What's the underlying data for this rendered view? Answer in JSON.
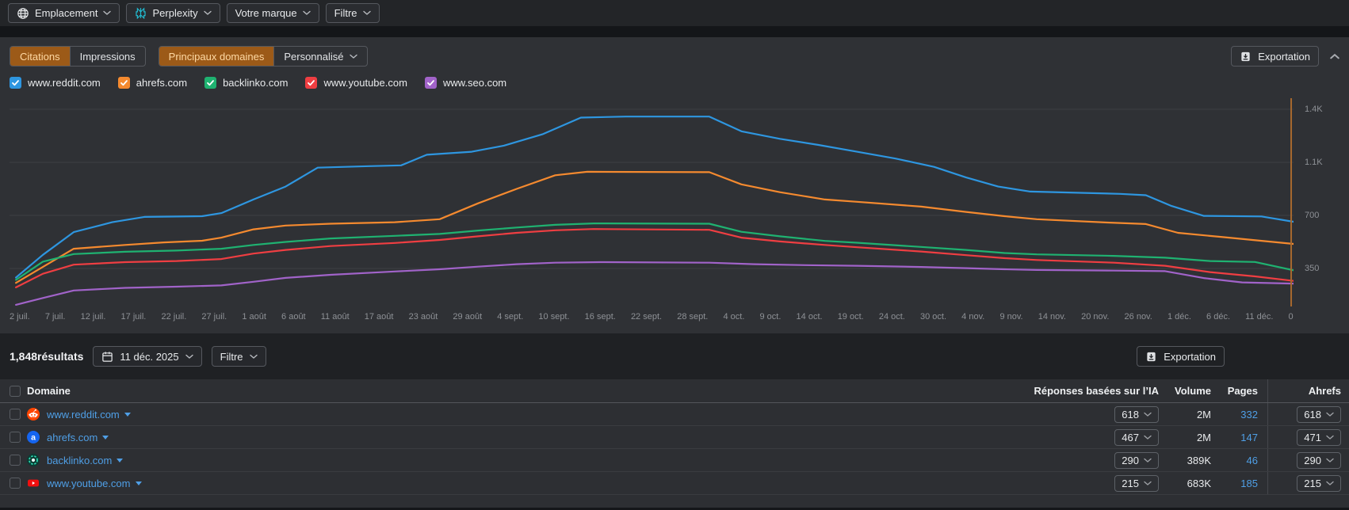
{
  "colors": {
    "panel_bg": "#2f3135",
    "accent_active_bg": "#9c5a18",
    "accent_active_text": "#ffd9a3",
    "link": "#4f9fe6",
    "grid": "#3c3e42",
    "marker_line": "#a8692e"
  },
  "toolbar": {
    "buttons": [
      {
        "label": "Emplacement",
        "icon": "globe-icon"
      },
      {
        "label": "Perplexity",
        "icon": "perplexity-icon"
      },
      {
        "label": "Votre marque",
        "icon": null
      },
      {
        "label": "Filtre",
        "icon": null
      }
    ]
  },
  "chart_section": {
    "metric_tabs": [
      {
        "label": "Citations",
        "active": true,
        "dropdown": false
      },
      {
        "label": "Impressions",
        "active": false,
        "dropdown": false
      }
    ],
    "scope_tabs": [
      {
        "label": "Principaux domaines",
        "active": true,
        "dropdown": false
      },
      {
        "label": "Personnalisé",
        "active": false,
        "dropdown": true
      }
    ],
    "export_label": "Exportation",
    "legend": [
      {
        "label": "www.reddit.com",
        "color": "#2e96e0"
      },
      {
        "label": "ahrefs.com",
        "color": "#f58a2f"
      },
      {
        "label": "backlinko.com",
        "color": "#1fb271"
      },
      {
        "label": "www.youtube.com",
        "color": "#ef3e42"
      },
      {
        "label": "www.seo.com",
        "color": "#a163c9"
      }
    ]
  },
  "chart_data": {
    "type": "line",
    "title": "",
    "xlabel": "",
    "ylabel": "",
    "grid": true,
    "legend_position": "top",
    "ylim": [
      0,
      1450
    ],
    "x_ticks": [
      "2 juil.",
      "7 juil.",
      "12 juil.",
      "17 juil.",
      "22 juil.",
      "27 juil.",
      "1 août",
      "6 août",
      "11 août",
      "17 août",
      "23 août",
      "29 août",
      "4 sept.",
      "10 sept.",
      "16 sept.",
      "22 sept.",
      "28 sept.",
      "4 oct.",
      "9 oct.",
      "14 oct.",
      "19 oct.",
      "24 oct.",
      "30 oct.",
      "4 nov.",
      "9 nov.",
      "14 nov.",
      "20 nov.",
      "26 nov.",
      "1 déc.",
      "6 déc.",
      "11 déc."
    ],
    "x_axis_end_label": "0",
    "y_ticks": [
      {
        "label": "1.4K",
        "value": 1400
      },
      {
        "label": "1.1K",
        "value": 1050
      },
      {
        "label": "700",
        "value": 700
      },
      {
        "label": "350",
        "value": 350
      }
    ],
    "series": [
      {
        "name": "www.reddit.com",
        "color": "#2e96e0",
        "points": [
          [
            0.005,
            290
          ],
          [
            0.026,
            440
          ],
          [
            0.05,
            590
          ],
          [
            0.08,
            655
          ],
          [
            0.105,
            690
          ],
          [
            0.15,
            695
          ],
          [
            0.165,
            715
          ],
          [
            0.19,
            805
          ],
          [
            0.215,
            890
          ],
          [
            0.24,
            1015
          ],
          [
            0.28,
            1025
          ],
          [
            0.305,
            1030
          ],
          [
            0.325,
            1100
          ],
          [
            0.36,
            1120
          ],
          [
            0.385,
            1160
          ],
          [
            0.415,
            1235
          ],
          [
            0.445,
            1345
          ],
          [
            0.48,
            1352
          ],
          [
            0.545,
            1352
          ],
          [
            0.57,
            1255
          ],
          [
            0.6,
            1205
          ],
          [
            0.63,
            1165
          ],
          [
            0.66,
            1120
          ],
          [
            0.69,
            1075
          ],
          [
            0.72,
            1020
          ],
          [
            0.745,
            950
          ],
          [
            0.77,
            890
          ],
          [
            0.795,
            857
          ],
          [
            0.865,
            842
          ],
          [
            0.885,
            833
          ],
          [
            0.905,
            762
          ],
          [
            0.93,
            697
          ],
          [
            0.975,
            693
          ],
          [
            1,
            658
          ]
        ]
      },
      {
        "name": "ahrefs.com",
        "color": "#f58a2f",
        "points": [
          [
            0.005,
            255
          ],
          [
            0.026,
            360
          ],
          [
            0.05,
            480
          ],
          [
            0.09,
            505
          ],
          [
            0.12,
            522
          ],
          [
            0.15,
            533
          ],
          [
            0.165,
            553
          ],
          [
            0.19,
            608
          ],
          [
            0.215,
            633
          ],
          [
            0.25,
            645
          ],
          [
            0.3,
            655
          ],
          [
            0.335,
            675
          ],
          [
            0.365,
            780
          ],
          [
            0.395,
            875
          ],
          [
            0.425,
            965
          ],
          [
            0.45,
            988
          ],
          [
            0.545,
            985
          ],
          [
            0.57,
            905
          ],
          [
            0.6,
            853
          ],
          [
            0.635,
            805
          ],
          [
            0.66,
            790
          ],
          [
            0.71,
            758
          ],
          [
            0.745,
            723
          ],
          [
            0.775,
            695
          ],
          [
            0.8,
            675
          ],
          [
            0.855,
            653
          ],
          [
            0.885,
            643
          ],
          [
            0.91,
            585
          ],
          [
            0.945,
            557
          ],
          [
            1,
            512
          ]
        ]
      },
      {
        "name": "backlinko.com",
        "color": "#1fb271",
        "points": [
          [
            0.005,
            275
          ],
          [
            0.026,
            395
          ],
          [
            0.05,
            445
          ],
          [
            0.09,
            460
          ],
          [
            0.13,
            468
          ],
          [
            0.165,
            480
          ],
          [
            0.19,
            505
          ],
          [
            0.215,
            525
          ],
          [
            0.25,
            548
          ],
          [
            0.3,
            565
          ],
          [
            0.335,
            578
          ],
          [
            0.365,
            600
          ],
          [
            0.395,
            620
          ],
          [
            0.425,
            638
          ],
          [
            0.455,
            647
          ],
          [
            0.545,
            645
          ],
          [
            0.57,
            592
          ],
          [
            0.6,
            562
          ],
          [
            0.635,
            532
          ],
          [
            0.66,
            520
          ],
          [
            0.71,
            492
          ],
          [
            0.745,
            472
          ],
          [
            0.775,
            452
          ],
          [
            0.8,
            443
          ],
          [
            0.86,
            433
          ],
          [
            0.9,
            421
          ],
          [
            0.935,
            399
          ],
          [
            0.97,
            393
          ],
          [
            1,
            338
          ]
        ]
      },
      {
        "name": "www.youtube.com",
        "color": "#ef3e42",
        "points": [
          [
            0.005,
            225
          ],
          [
            0.026,
            315
          ],
          [
            0.05,
            375
          ],
          [
            0.09,
            392
          ],
          [
            0.13,
            399
          ],
          [
            0.165,
            412
          ],
          [
            0.19,
            448
          ],
          [
            0.215,
            472
          ],
          [
            0.25,
            498
          ],
          [
            0.3,
            518
          ],
          [
            0.335,
            538
          ],
          [
            0.365,
            562
          ],
          [
            0.395,
            585
          ],
          [
            0.425,
            602
          ],
          [
            0.455,
            610
          ],
          [
            0.545,
            605
          ],
          [
            0.57,
            553
          ],
          [
            0.6,
            528
          ],
          [
            0.635,
            505
          ],
          [
            0.66,
            490
          ],
          [
            0.71,
            462
          ],
          [
            0.745,
            438
          ],
          [
            0.775,
            418
          ],
          [
            0.8,
            406
          ],
          [
            0.86,
            388
          ],
          [
            0.9,
            368
          ],
          [
            0.935,
            326
          ],
          [
            0.97,
            298
          ],
          [
            1,
            268
          ]
        ]
      },
      {
        "name": "www.seo.com",
        "color": "#a163c9",
        "points": [
          [
            0.005,
            110
          ],
          [
            0.026,
            155
          ],
          [
            0.05,
            205
          ],
          [
            0.09,
            222
          ],
          [
            0.13,
            230
          ],
          [
            0.165,
            238
          ],
          [
            0.19,
            262
          ],
          [
            0.215,
            288
          ],
          [
            0.25,
            308
          ],
          [
            0.3,
            330
          ],
          [
            0.335,
            345
          ],
          [
            0.365,
            362
          ],
          [
            0.395,
            378
          ],
          [
            0.425,
            388
          ],
          [
            0.46,
            392
          ],
          [
            0.545,
            388
          ],
          [
            0.58,
            378
          ],
          [
            0.62,
            372
          ],
          [
            0.66,
            368
          ],
          [
            0.71,
            360
          ],
          [
            0.745,
            352
          ],
          [
            0.775,
            345
          ],
          [
            0.8,
            340
          ],
          [
            0.86,
            336
          ],
          [
            0.9,
            332
          ],
          [
            0.93,
            287
          ],
          [
            0.96,
            258
          ],
          [
            1,
            250
          ]
        ]
      }
    ]
  },
  "results_section": {
    "count": "1,848résultats",
    "date_label": "11 déc. 2025",
    "filter_label": "Filtre",
    "export_label": "Exportation"
  },
  "table": {
    "columns": [
      "Domaine",
      "Réponses basées sur l’IA",
      "Volume",
      "Pages",
      "Ahrefs"
    ],
    "rows": [
      {
        "domain": "www.reddit.com",
        "favicon": "reddit-favicon",
        "ia_responses": "618",
        "volume": "2M",
        "pages": "332",
        "ahrefs": "618"
      },
      {
        "domain": "ahrefs.com",
        "favicon": "ahrefs-favicon",
        "ia_responses": "467",
        "volume": "2M",
        "pages": "147",
        "ahrefs": "471"
      },
      {
        "domain": "backlinko.com",
        "favicon": "backlinko-favicon",
        "ia_responses": "290",
        "volume": "389K",
        "pages": "46",
        "ahrefs": "290"
      },
      {
        "domain": "www.youtube.com",
        "favicon": "youtube-favicon",
        "ia_responses": "215",
        "volume": "683K",
        "pages": "185",
        "ahrefs": "215"
      }
    ]
  }
}
